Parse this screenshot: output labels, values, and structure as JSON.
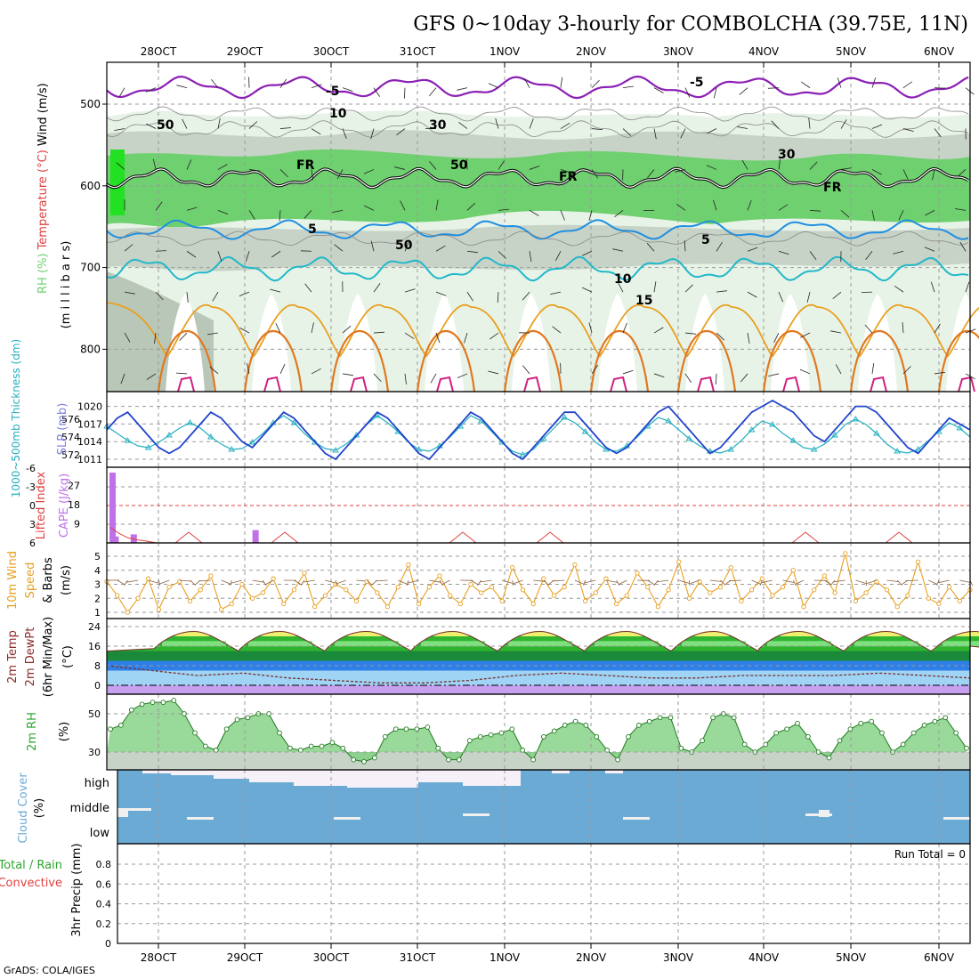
{
  "title": "GFS 0~10day 3-hourly for COMBOLCHA (39.75E, 11N)",
  "footer": "GrADS: COLA/IGES",
  "run_total_label": "Run Total = 0",
  "colors": {
    "rh_green": "#6fd06f",
    "rh_gray": "#c8d3c8",
    "temp_purple": "#8b1fb5",
    "temp_blue": "#1f8fe0",
    "temp_cyan": "#22b8c8",
    "temp_orange": "#e8a020",
    "slp_blue": "#2244cc",
    "thickness_cyan": "#22b0c0",
    "cape_violet": "#c070e8",
    "lifted_red": "#e04040",
    "wind_orange": "#e8a020",
    "temp_area_green": "#2fb52f",
    "dewpt_blue": "#2f7fe8",
    "rh2m_green": "#7fd07f",
    "cloud_blue": "#6aaad4"
  },
  "chart_data": [
    {
      "type": "area",
      "name": "upper-air",
      "ylabel_parts": [
        "RH (%)",
        "Temperature (°C)",
        "Wind (m/s)"
      ],
      "ylabel2": "(m i l l i b a r s)",
      "yticks": [
        "500",
        "600",
        "700",
        "800"
      ],
      "contour_labels": [
        "-5",
        "-5",
        "FR",
        "FR",
        "FR",
        "5",
        "5",
        "10",
        "15",
        "10",
        "30",
        "30",
        "50",
        "50",
        "50"
      ],
      "x_dates": [
        "28OCT",
        "29OCT",
        "30OCT",
        "31OCT",
        "1NOV",
        "2NOV",
        "3NOV",
        "4NOV",
        "5NOV",
        "6NOV"
      ]
    },
    {
      "type": "line",
      "name": "slp-thickness",
      "ylabel_left": "1000~500mb Thickness (dm)",
      "ylabel_right": "SLP (mb)",
      "yticks_left": [
        "576",
        "574",
        "572"
      ],
      "yticks_right": [
        "1020",
        "1017",
        "1014",
        "1011"
      ],
      "slp": [
        1016,
        1018,
        1019,
        1017,
        1015,
        1013,
        1012,
        1013,
        1015,
        1017,
        1019,
        1018,
        1016,
        1014,
        1013,
        1015,
        1017,
        1019,
        1018,
        1016,
        1014,
        1012,
        1011,
        1013,
        1015,
        1017,
        1019,
        1018,
        1016,
        1014,
        1012,
        1011,
        1013,
        1015,
        1017,
        1019,
        1018,
        1016,
        1014,
        1012,
        1011,
        1013,
        1015,
        1017,
        1019,
        1019,
        1017,
        1015,
        1013,
        1012,
        1013,
        1015,
        1017,
        1019,
        1020,
        1018,
        1016,
        1014,
        1012,
        1013,
        1015,
        1017,
        1019,
        1020,
        1021,
        1020,
        1019,
        1017,
        1015,
        1014,
        1016,
        1018,
        1020,
        1020,
        1019,
        1017,
        1015,
        1013,
        1012,
        1014,
        1016,
        1018,
        1017,
        1016
      ],
      "thickness": [
        575.2,
        574.4,
        573.6,
        573.0,
        572.8,
        573.4,
        574.2,
        575.0,
        575.6,
        575.0,
        574.0,
        573.2,
        572.6,
        572.7,
        573.4,
        574.4,
        575.6,
        576.4,
        575.6,
        574.4,
        573.4,
        572.7,
        572.5,
        573.2,
        574.2,
        575.4,
        576.4,
        575.6,
        574.6,
        573.4,
        572.6,
        572.4,
        573.0,
        574.0,
        575.2,
        576.4,
        575.8,
        574.6,
        573.4,
        572.4,
        572.0,
        572.6,
        573.8,
        575.0,
        576.2,
        575.6,
        574.6,
        573.4,
        572.6,
        572.4,
        573.0,
        574.0,
        575.2,
        576.2,
        575.8,
        574.8,
        573.8,
        573.0,
        572.4,
        572.2,
        572.6,
        573.6,
        574.8,
        575.8,
        575.4,
        574.4,
        573.6,
        572.8,
        572.6,
        573.2,
        574.2,
        575.4,
        576.0,
        575.4,
        574.4,
        573.2,
        572.4,
        572.2,
        572.6,
        573.6,
        574.6,
        575.6,
        575.0,
        574.0
      ]
    },
    {
      "type": "bar",
      "name": "cape-lifted",
      "ylabel_left": "Lifted Index",
      "ylabel_right": "CAPE (J/kg)",
      "yticks_left": [
        "-6",
        "-3",
        "0",
        "3",
        "6"
      ],
      "yticks_right": [
        "27",
        "18",
        "9"
      ],
      "cape": [
        {
          "t": 0,
          "v": 33
        },
        {
          "t": 4,
          "v": 3
        },
        {
          "t": 28,
          "v": 4
        },
        {
          "t": 189,
          "v": 6
        }
      ],
      "lifted_index": [
        3.5,
        4.5,
        5.2,
        5.5,
        5.7,
        6
      ]
    },
    {
      "type": "line",
      "name": "wind10m",
      "ylabel": "10m Wind Speed & Barbs (m/s)",
      "ylabel_parts": [
        "10m Wind",
        "Speed",
        "& Barbs",
        "(m/s)"
      ],
      "yticks": [
        "5",
        "4",
        "3",
        "2",
        "1"
      ],
      "speed": [
        3.2,
        2.2,
        1.0,
        2.0,
        3.4,
        1.2,
        2.8,
        3.2,
        1.8,
        2.6,
        3.6,
        1.2,
        1.6,
        3.0,
        2.0,
        2.4,
        3.4,
        1.6,
        2.6,
        3.8,
        1.4,
        2.2,
        3.0,
        2.6,
        1.8,
        3.2,
        2.4,
        1.4,
        2.8,
        4.4,
        1.6,
        2.8,
        3.6,
        2.2,
        1.6,
        3.0,
        2.4,
        2.8,
        1.8,
        4.2,
        2.6,
        1.6,
        3.4,
        2.2,
        2.8,
        4.4,
        1.8,
        2.4,
        3.4,
        1.6,
        2.2,
        3.8,
        2.8,
        1.4,
        2.6,
        4.6,
        2.0,
        3.2,
        2.4,
        2.8,
        4.2,
        1.8,
        2.6,
        3.4,
        2.2,
        2.8,
        4.0,
        1.4,
        2.6,
        3.6,
        2.4,
        5.2,
        1.8,
        2.4,
        3.2,
        2.6,
        1.4,
        2.2,
        4.6,
        2.0,
        1.6,
        2.8,
        1.8,
        2.6
      ]
    },
    {
      "type": "area",
      "name": "temp2m",
      "ylabel_parts": [
        "2m Temp",
        "2m DewPt",
        "(6hr Min/Max)",
        "(°C)"
      ],
      "yticks": [
        "24",
        "16",
        "8",
        "0"
      ],
      "temp_max": [
        20,
        22,
        21,
        20,
        19,
        20,
        22,
        21,
        21,
        22,
        22,
        21,
        21,
        22,
        21,
        21,
        22,
        21,
        21,
        22
      ],
      "dewpt": [
        8,
        6,
        4,
        5,
        3,
        2,
        1,
        1,
        2,
        4,
        5,
        4,
        3,
        3,
        4,
        4,
        4,
        5,
        4,
        3
      ]
    },
    {
      "type": "area",
      "name": "rh2m",
      "ylabel_parts": [
        "2m RH",
        "(%)"
      ],
      "yticks": [
        "50",
        "30"
      ],
      "rh": [
        42,
        44,
        52,
        55,
        56,
        56,
        57,
        50,
        40,
        33,
        31,
        42,
        47,
        48,
        50,
        50,
        40,
        32,
        31,
        33,
        33,
        35,
        32,
        26,
        25,
        27,
        38,
        42,
        42,
        42,
        43,
        32,
        26,
        26,
        36,
        38,
        39,
        40,
        42,
        31,
        26,
        38,
        41,
        44,
        46,
        44,
        38,
        31,
        26,
        38,
        44,
        46,
        48,
        48,
        32,
        30,
        36,
        48,
        50,
        48,
        34,
        30,
        34,
        40,
        42,
        45,
        38,
        30,
        27,
        36,
        42,
        45,
        46,
        40,
        30,
        34,
        40,
        44,
        46,
        48,
        40,
        32
      ]
    },
    {
      "type": "area",
      "name": "cloud-cover",
      "ylabel_parts": [
        "Cloud Cover",
        "(%)"
      ],
      "levels": [
        "high",
        "middle",
        "low"
      ]
    },
    {
      "type": "bar",
      "name": "precip",
      "ylabel_parts": [
        "Total / Rain",
        "Convective",
        "3hr Precip (mm)"
      ],
      "yticks": [
        "0.8",
        "0.6",
        "0.4",
        "0.2",
        "0"
      ],
      "ylim": [
        0,
        0.95
      ],
      "values": []
    }
  ]
}
